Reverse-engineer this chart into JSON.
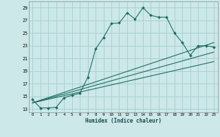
{
  "xlabel": "Humidex (Indice chaleur)",
  "ylabel": "",
  "bg_color": "#cce8e8",
  "grid_color": "#aad0d0",
  "line_color": "#1a6b5e",
  "xlim": [
    -0.5,
    23.5
  ],
  "ylim": [
    12.5,
    30.0
  ],
  "yticks": [
    13,
    15,
    17,
    19,
    21,
    23,
    25,
    27,
    29
  ],
  "xticks": [
    0,
    1,
    2,
    3,
    4,
    5,
    6,
    7,
    8,
    9,
    10,
    11,
    12,
    13,
    14,
    15,
    16,
    17,
    18,
    19,
    20,
    21,
    22,
    23
  ],
  "lines": [
    {
      "x": [
        0,
        1,
        2,
        3,
        4,
        5,
        6,
        7,
        8,
        9,
        10,
        11,
        12,
        13,
        14,
        15,
        16,
        17,
        18,
        19,
        20,
        21,
        22,
        23
      ],
      "y": [
        14.5,
        13.2,
        13.2,
        13.3,
        14.8,
        15.2,
        15.5,
        18.0,
        22.5,
        24.3,
        26.5,
        26.6,
        28.2,
        27.2,
        29.0,
        27.8,
        27.5,
        27.5,
        25.0,
        23.5,
        21.5,
        23.0,
        23.0,
        22.8
      ],
      "marker": true
    },
    {
      "x": [
        0,
        23
      ],
      "y": [
        14.0,
        23.5
      ],
      "marker": false
    },
    {
      "x": [
        0,
        23
      ],
      "y": [
        14.0,
        22.0
      ],
      "marker": false
    },
    {
      "x": [
        0,
        23
      ],
      "y": [
        14.0,
        20.5
      ],
      "marker": false
    }
  ]
}
